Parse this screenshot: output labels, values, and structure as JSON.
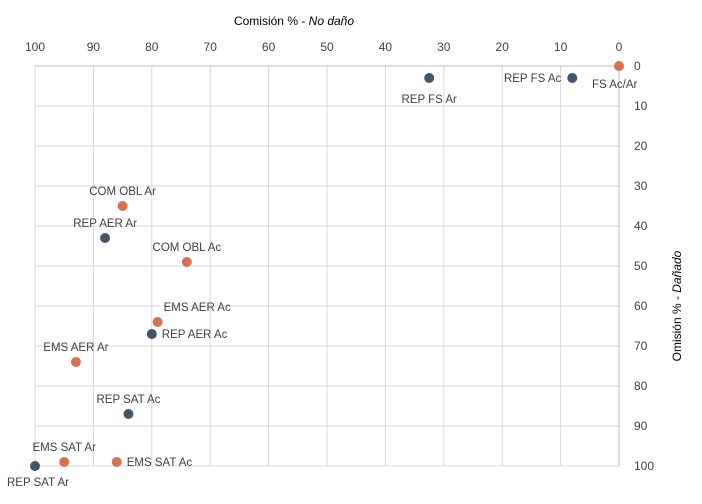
{
  "chart_data": {
    "type": "scatter",
    "title": "",
    "xlabel_prefix": "Comisión % - ",
    "xlabel_emphasis": "No daño",
    "ylabel_prefix": "Omisión % - ",
    "ylabel_emphasis": "Dañado",
    "xlim": [
      100,
      0
    ],
    "ylim": [
      0,
      100
    ],
    "x_ticks": [
      100,
      90,
      80,
      70,
      60,
      50,
      40,
      30,
      20,
      10,
      0
    ],
    "y_ticks": [
      0,
      10,
      20,
      30,
      40,
      50,
      60,
      70,
      80,
      90,
      100
    ],
    "grid": true,
    "x_axis_position": "top",
    "y_axis_position": "right",
    "x_reversed": true,
    "y_reversed": true,
    "colors": {
      "Ar": "#44546a",
      "Ac": "#d57255"
    },
    "points": [
      {
        "label": "REP FS Ar",
        "group": "Ar",
        "x": 32.5,
        "y": 3,
        "anchor": "below"
      },
      {
        "label": "REP FS Ac",
        "group": "Ar",
        "x": 8,
        "y": 3,
        "anchor": "left"
      },
      {
        "label": "FS Ac/Ar",
        "group": "Ac",
        "x": 0,
        "y": 0,
        "anchor": "below-right"
      },
      {
        "label": "COM OBL Ar",
        "group": "Ac",
        "x": 85,
        "y": 35,
        "anchor": "above"
      },
      {
        "label": "REP AER Ar",
        "group": "Ar",
        "x": 88,
        "y": 43,
        "anchor": "above"
      },
      {
        "label": "COM OBL Ac",
        "group": "Ac",
        "x": 74,
        "y": 49,
        "anchor": "above"
      },
      {
        "label": "EMS AER Ac",
        "group": "Ac",
        "x": 79,
        "y": 64,
        "anchor": "above-right"
      },
      {
        "label": "REP AER Ac",
        "group": "Ar",
        "x": 80,
        "y": 67,
        "anchor": "right"
      },
      {
        "label": "EMS AER Ar",
        "group": "Ac",
        "x": 93,
        "y": 74,
        "anchor": "above"
      },
      {
        "label": "REP SAT Ac",
        "group": "Ar",
        "x": 84,
        "y": 87,
        "anchor": "above"
      },
      {
        "label": "EMS SAT Ar",
        "group": "Ac",
        "x": 95,
        "y": 99,
        "anchor": "above"
      },
      {
        "label": "EMS SAT Ac",
        "group": "Ac",
        "x": 86,
        "y": 99,
        "anchor": "right"
      },
      {
        "label": "REP SAT Ar",
        "group": "Ar",
        "x": 100,
        "y": 100,
        "anchor": "below-right"
      }
    ]
  }
}
